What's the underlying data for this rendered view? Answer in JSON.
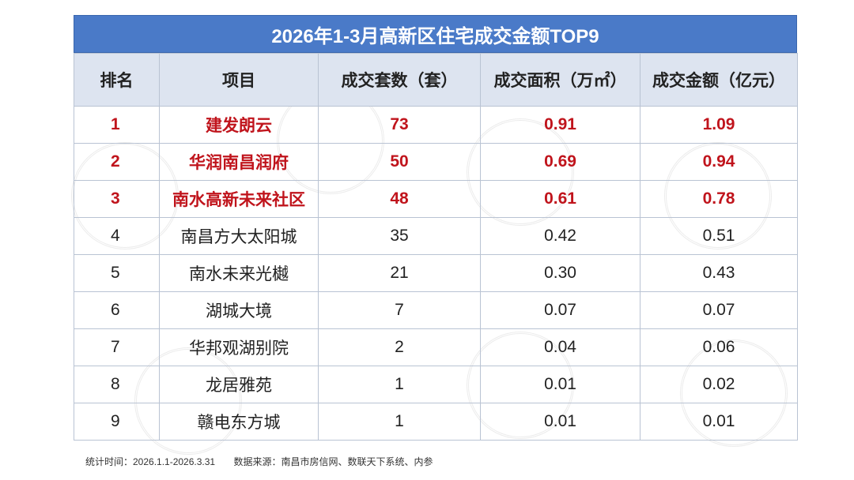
{
  "title": "2026年1-3月高新区住宅成交金额TOP9",
  "headers": [
    "排名",
    "项目",
    "成交套数（套）",
    "成交面积（万㎡）",
    "成交金额（亿元）"
  ],
  "rows": [
    {
      "rank": "1",
      "project": "建发朗云",
      "units": "73",
      "area": "0.91",
      "amount": "1.09"
    },
    {
      "rank": "2",
      "project": "华润南昌润府",
      "units": "50",
      "area": "0.69",
      "amount": "0.94"
    },
    {
      "rank": "3",
      "project": "南水高新未来社区",
      "units": "48",
      "area": "0.61",
      "amount": "0.78"
    },
    {
      "rank": "4",
      "project": "南昌方大太阳城",
      "units": "35",
      "area": "0.42",
      "amount": "0.51"
    },
    {
      "rank": "5",
      "project": "南水未来光樾",
      "units": "21",
      "area": "0.30",
      "amount": "0.43"
    },
    {
      "rank": "6",
      "project": "湖城大境",
      "units": "7",
      "area": "0.07",
      "amount": "0.07"
    },
    {
      "rank": "7",
      "project": "华邦观湖别院",
      "units": "2",
      "area": "0.04",
      "amount": "0.06"
    },
    {
      "rank": "8",
      "project": "龙居雅苑",
      "units": "1",
      "area": "0.01",
      "amount": "0.02"
    },
    {
      "rank": "9",
      "project": "赣电东方城",
      "units": "1",
      "area": "0.01",
      "amount": "0.01"
    }
  ],
  "footer": {
    "period": "统计时间：2026.1.1-2026.3.31",
    "source": "数据来源：南昌市房信网、数联天下系统、内参"
  },
  "colors": {
    "title_bg": "#4a7ac8",
    "header_bg": "#dde4f0",
    "highlight_text": "#c0141c"
  }
}
